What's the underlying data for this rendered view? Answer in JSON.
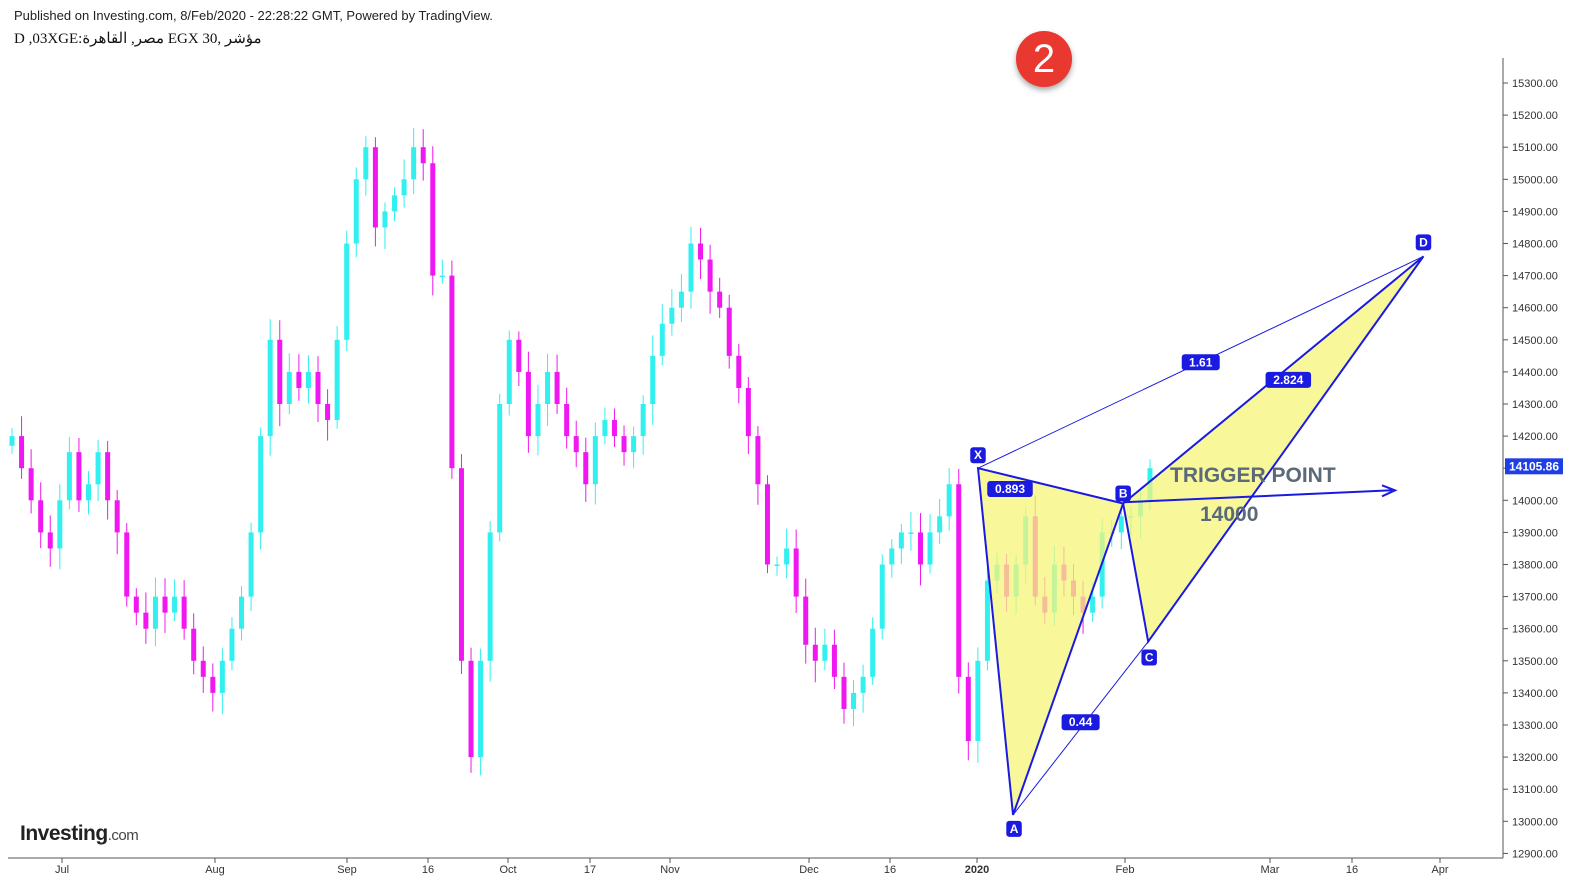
{
  "header": {
    "published": "Published on Investing.com, 8/Feb/2020 - 22:28:22 GMT, Powered by TradingView.",
    "symbol": "D ,03XGE:مصر, القاهرة EGX 30, مؤشر"
  },
  "badge": "2",
  "logo": {
    "brand": "Investing",
    "suffix": ".com"
  },
  "annotation": {
    "title": "TRIGGER POINT",
    "value": "14000"
  },
  "colors": {
    "up": "#33f0f0",
    "down": "#f018f0",
    "pattern_line": "#1a1ae0",
    "pattern_fill": "#f5f57a",
    "last_price_bg": "#1e3fe6"
  },
  "chart_data": {
    "type": "candlestick",
    "title": "",
    "ylim": [
      12900,
      15300
    ],
    "y_ticks": [
      "12900.00",
      "13000.00",
      "13100.00",
      "13200.00",
      "13300.00",
      "13400.00",
      "13500.00",
      "13600.00",
      "13700.00",
      "13800.00",
      "13900.00",
      "14000.00",
      "14100.00",
      "14200.00",
      "14300.00",
      "14400.00",
      "14500.00",
      "14600.00",
      "14700.00",
      "14800.00",
      "14900.00",
      "15000.00",
      "15100.00",
      "15200.00",
      "15300.00"
    ],
    "x_ticks": [
      "Jul",
      "Aug",
      "Sep",
      "16",
      "Oct",
      "17",
      "Nov",
      "Dec",
      "16",
      "2020",
      "Feb",
      "Mar",
      "16",
      "Apr"
    ],
    "last_price": "14105.86",
    "closes": [
      14200,
      14100,
      14000,
      13900,
      13850,
      14000,
      14150,
      14000,
      14050,
      14150,
      14000,
      13900,
      13700,
      13650,
      13600,
      13700,
      13650,
      13700,
      13600,
      13500,
      13450,
      13400,
      13500,
      13600,
      13700,
      13900,
      14200,
      14500,
      14300,
      14400,
      14350,
      14400,
      14300,
      14250,
      14500,
      14800,
      15000,
      15100,
      14850,
      14900,
      14950,
      15000,
      15100,
      15050,
      14700,
      14700,
      14100,
      13500,
      13200,
      13500,
      13900,
      14300,
      14500,
      14400,
      14200,
      14300,
      14400,
      14300,
      14200,
      14150,
      14050,
      14200,
      14250,
      14200,
      14150,
      14200,
      14300,
      14450,
      14550,
      14600,
      14650,
      14800,
      14750,
      14650,
      14600,
      14450,
      14350,
      14200,
      14050,
      13800,
      13800,
      13850,
      13700,
      13550,
      13500,
      13550,
      13450,
      13350,
      13400,
      13450,
      13600,
      13800,
      13850,
      13900,
      13900,
      13800,
      13900,
      13950,
      14050,
      13450,
      13250,
      13500,
      13750,
      13800,
      13700,
      13800,
      13950,
      13700,
      13650,
      13800,
      13750,
      13700,
      13650,
      13700,
      13900,
      13900,
      13950,
      13950,
      14000,
      14100
    ],
    "pattern": {
      "points": [
        {
          "name": "X",
          "date": "2019-12-31",
          "price": 14100
        },
        {
          "name": "A",
          "date": "2020-01-07",
          "price": 13020
        },
        {
          "name": "B",
          "date": "2020-01-29",
          "price": 13990
        },
        {
          "name": "C",
          "date": "2020-02-03",
          "price": 13560
        },
        {
          "name": "D",
          "date": "2020-03-29",
          "price": 14760
        }
      ],
      "ratios": [
        {
          "label": "0.893",
          "between": "XA-B"
        },
        {
          "label": "0.44",
          "between": "XA-C"
        },
        {
          "label": "1.61",
          "between": "XA-D"
        },
        {
          "label": "2.824",
          "between": "BC-D"
        }
      ],
      "trigger_line": {
        "price": 14000
      }
    }
  }
}
